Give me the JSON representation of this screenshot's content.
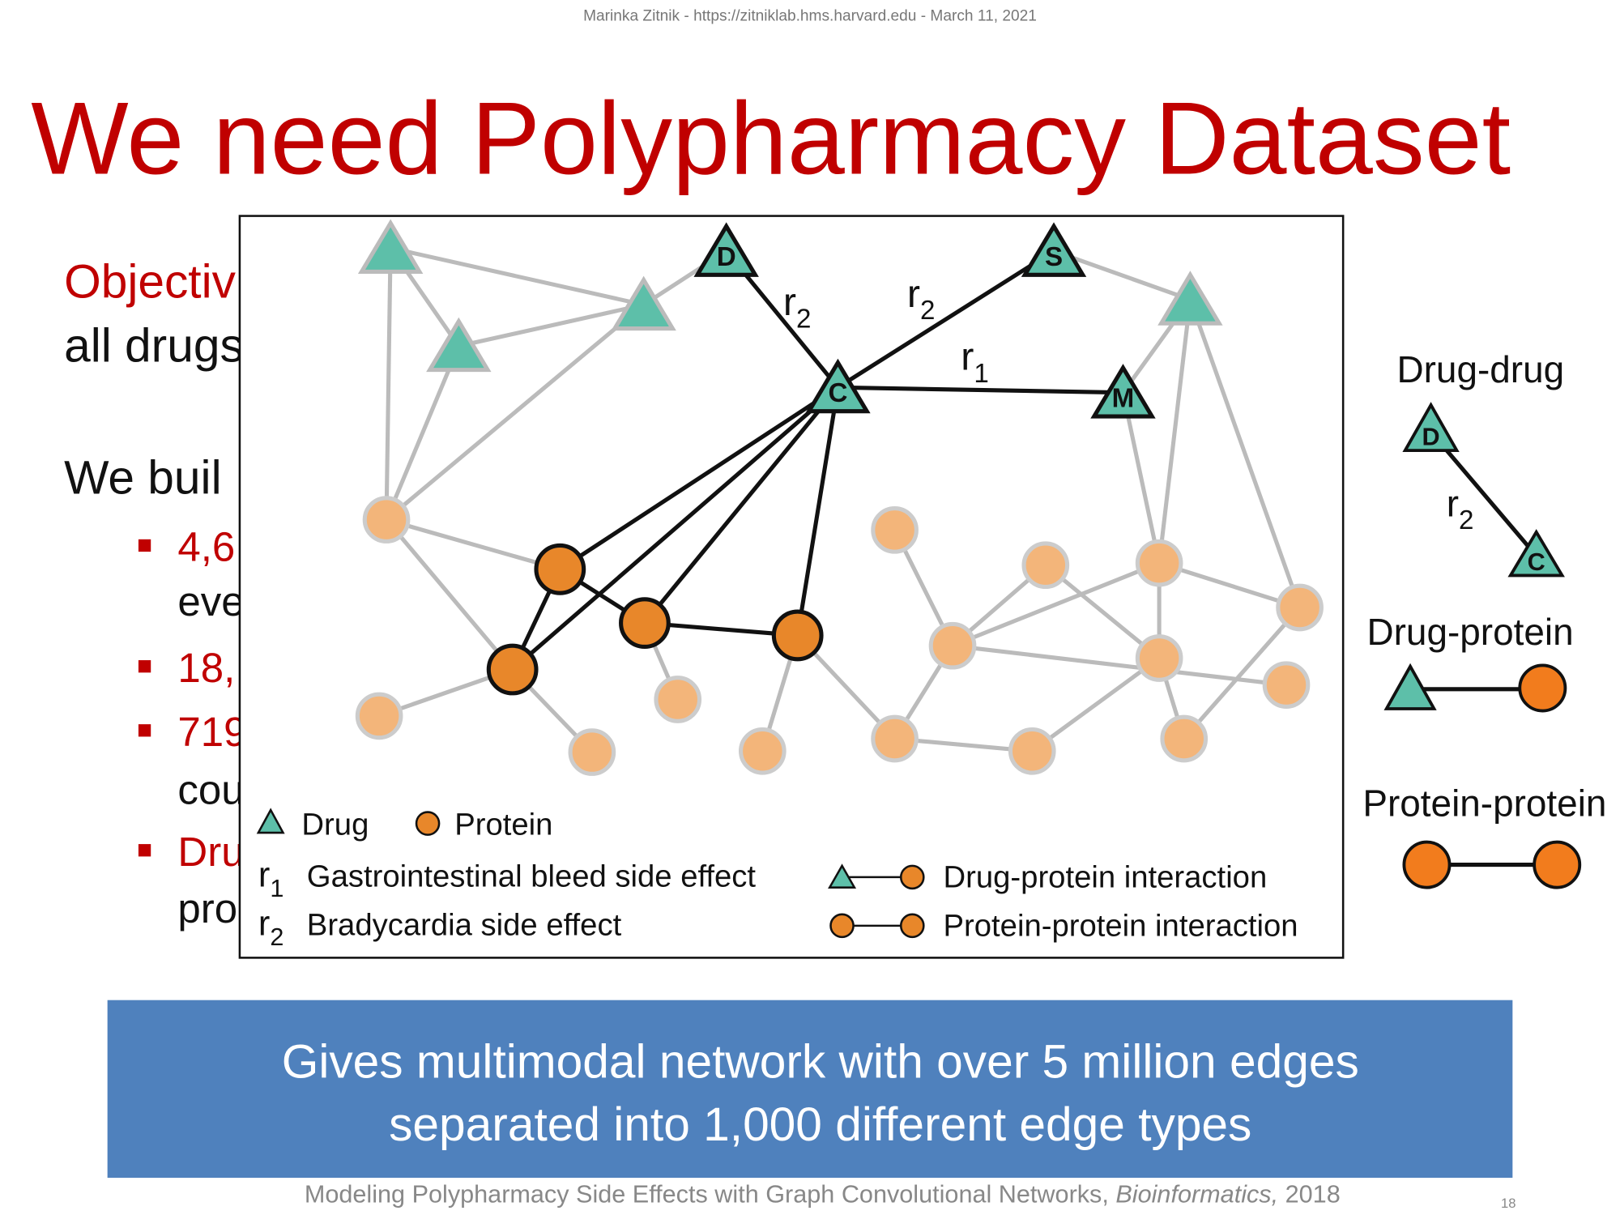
{
  "header": "Marinka Zitnik - https://zitniklab.hms.harvard.edu - March 11, 2021",
  "title": "We need Polypharmacy Dataset",
  "body": {
    "lines": [
      "Objectiv",
      "all drugs",
      "We buil"
    ],
    "bullets": [
      {
        "lines": [
          "4,6",
          "eve"
        ]
      },
      {
        "lines": [
          "18,"
        ]
      },
      {
        "lines": [
          "719",
          "cou"
        ]
      },
      {
        "lines": [
          "Dru",
          "pro"
        ]
      }
    ]
  },
  "figure": {
    "node_labels": {
      "d": "D",
      "s": "S",
      "c": "C",
      "m": "M"
    },
    "edge_labels": [
      {
        "base": "r",
        "sub": "2"
      },
      {
        "base": "r",
        "sub": "2"
      },
      {
        "base": "r",
        "sub": "1"
      }
    ],
    "legend": {
      "drug": "Drug",
      "protein": "Protein",
      "r1": {
        "base": "r",
        "sub": "1",
        "text": "Gastrointestinal bleed side effect"
      },
      "r2": {
        "base": "r",
        "sub": "2",
        "text": "Bradycardia side effect"
      },
      "drug_protein": "Drug-protein interaction",
      "protein_protein": "Protein-protein interaction"
    }
  },
  "side": {
    "drug_drug": "Drug-drug",
    "d": "D",
    "c": "C",
    "r": {
      "base": "r",
      "sub": "2"
    },
    "drug_protein": "Drug-protein",
    "protein_protein": "Protein-protein"
  },
  "banner": [
    "Gives multimodal network with over 5 million edges",
    "separated into 1,000 different edge types"
  ],
  "footer": {
    "text": "Modeling Polypharmacy Side Effects with Graph Convolutional Networks, ",
    "journal": "Bioinformatics,",
    "year": " 2018"
  },
  "page_number": "18"
}
